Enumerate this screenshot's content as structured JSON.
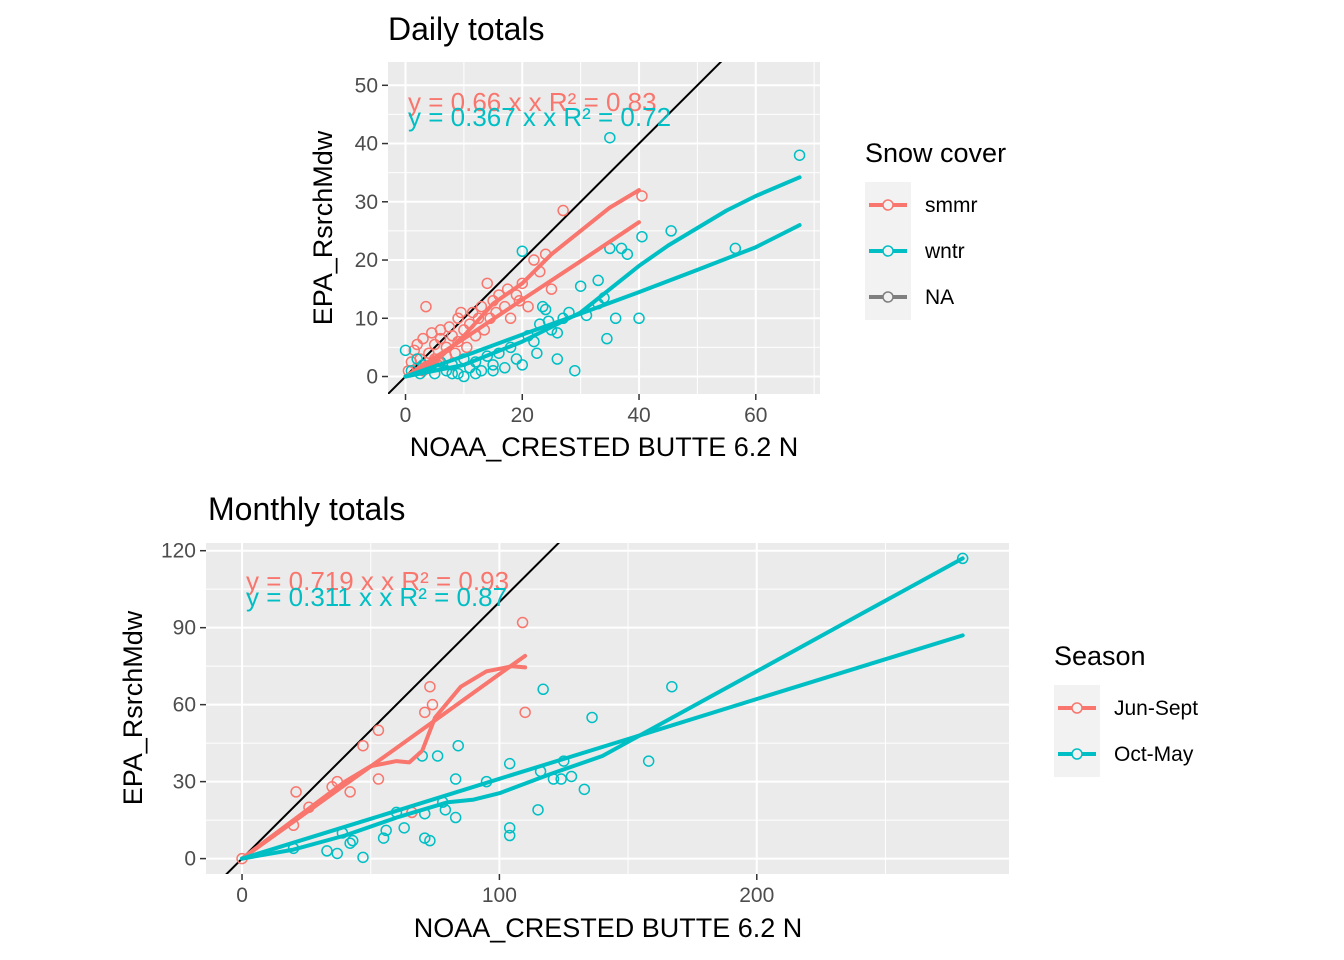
{
  "colors": {
    "red": "#F8766D",
    "teal": "#00BFC4",
    "grey": "#7F7F7F",
    "panel": "#EBEBEB",
    "grid": "#FFFFFF",
    "ref_line": "#000000"
  },
  "chart_data": [
    {
      "type": "scatter",
      "title": "Daily totals",
      "xlabel": "NOAA_CRESTED BUTTE 6.2 N",
      "ylabel": "EPA_RsrchMdw",
      "xlim": [
        -3,
        71
      ],
      "ylim": [
        -3,
        54
      ],
      "x_ticks": [
        0,
        20,
        40,
        60
      ],
      "y_ticks": [
        0,
        10,
        20,
        30,
        40,
        50
      ],
      "grid": true,
      "reference_line": "y = x",
      "legend": {
        "title": "Snow cover",
        "placement": "right",
        "entries": [
          "smmr",
          "wntr",
          "NA"
        ]
      },
      "annotations": [
        {
          "series": "smmr",
          "text": "y = 0.66 x   x   R² = 0.83"
        },
        {
          "series": "wntr",
          "text": "y = 0.367 x   x   R² = 0.72"
        }
      ],
      "series": [
        {
          "name": "smmr",
          "points": [
            [
              0.5,
              1
            ],
            [
              1,
              2.5
            ],
            [
              1.5,
              4.5
            ],
            [
              2,
              1.5
            ],
            [
              2,
              5.5
            ],
            [
              2.5,
              3
            ],
            [
              3,
              6.5
            ],
            [
              3,
              1
            ],
            [
              3.5,
              12
            ],
            [
              4,
              4
            ],
            [
              4.5,
              7.5
            ],
            [
              5,
              3
            ],
            [
              5,
              5.5
            ],
            [
              5.5,
              2
            ],
            [
              6,
              6.5
            ],
            [
              6,
              8
            ],
            [
              7,
              5
            ],
            [
              7,
              3.5
            ],
            [
              7.5,
              8.5
            ],
            [
              8,
              7
            ],
            [
              8.5,
              4
            ],
            [
              9,
              10
            ],
            [
              9,
              6
            ],
            [
              9.5,
              11
            ],
            [
              10,
              8
            ],
            [
              10.5,
              5
            ],
            [
              11,
              9
            ],
            [
              11.5,
              11
            ],
            [
              12,
              7
            ],
            [
              12.5,
              10
            ],
            [
              13,
              12
            ],
            [
              13.5,
              8
            ],
            [
              14,
              16
            ],
            [
              14.5,
              10
            ],
            [
              15,
              13
            ],
            [
              15.5,
              11
            ],
            [
              16,
              14
            ],
            [
              17,
              12
            ],
            [
              17.5,
              15
            ],
            [
              18,
              10
            ],
            [
              19,
              14
            ],
            [
              19.5,
              13
            ],
            [
              20,
              16
            ],
            [
              21,
              12
            ],
            [
              22,
              20
            ],
            [
              23,
              18
            ],
            [
              24,
              21
            ],
            [
              25,
              15
            ],
            [
              27,
              28.5
            ],
            [
              40.5,
              31
            ]
          ],
          "fit_lines": [
            [
              [
                0,
                0
              ],
              [
                10,
                6.5
              ],
              [
                20,
                13.2
              ],
              [
                30,
                19.8
              ],
              [
                40,
                26.5
              ]
            ],
            [
              [
                0,
                0
              ],
              [
                5,
                2.5
              ],
              [
                10,
                7
              ],
              [
                15,
                12.5
              ],
              [
                20,
                16
              ],
              [
                25,
                21
              ],
              [
                30,
                25
              ],
              [
                35,
                29
              ],
              [
                40,
                32
              ]
            ]
          ]
        },
        {
          "name": "wntr",
          "points": [
            [
              0,
              4.5
            ],
            [
              1,
              1
            ],
            [
              2,
              3
            ],
            [
              2.5,
              0.5
            ],
            [
              3,
              2
            ],
            [
              4,
              1.5
            ],
            [
              5,
              0.5
            ],
            [
              6,
              2.5
            ],
            [
              7,
              1
            ],
            [
              8,
              2
            ],
            [
              9,
              0.5
            ],
            [
              10,
              3
            ],
            [
              11,
              1.5
            ],
            [
              12,
              2.5
            ],
            [
              13,
              1
            ],
            [
              14,
              3.5
            ],
            [
              15,
              2
            ],
            [
              16,
              4
            ],
            [
              17,
              1.5
            ],
            [
              18,
              5
            ],
            [
              19,
              3
            ],
            [
              20,
              2
            ],
            [
              20,
              21.5
            ],
            [
              21,
              7
            ],
            [
              22,
              6
            ],
            [
              22.5,
              4
            ],
            [
              23,
              9
            ],
            [
              23.5,
              12
            ],
            [
              24,
              11.5
            ],
            [
              24.5,
              9.5
            ],
            [
              25,
              8
            ],
            [
              26,
              7.5
            ],
            [
              27,
              10
            ],
            [
              28,
              11
            ],
            [
              29,
              1
            ],
            [
              30,
              15.5
            ],
            [
              31,
              10.5
            ],
            [
              33,
              12.5
            ],
            [
              33,
              16.5
            ],
            [
              34,
              13.5
            ],
            [
              34.5,
              6.5
            ],
            [
              35,
              22
            ],
            [
              35,
              41
            ],
            [
              36,
              10
            ],
            [
              37,
              22
            ],
            [
              38,
              21
            ],
            [
              40,
              10
            ],
            [
              40.5,
              24
            ],
            [
              45.5,
              25
            ],
            [
              56.5,
              22
            ],
            [
              67.5,
              38
            ],
            [
              26,
              3
            ],
            [
              15,
              1
            ],
            [
              12,
              0.5
            ],
            [
              10,
              0
            ],
            [
              8,
              0.5
            ]
          ],
          "fit_lines": [
            [
              [
                0,
                0
              ],
              [
                10,
                3.5
              ],
              [
                20,
                7.2
              ],
              [
                30,
                10.8
              ],
              [
                40,
                14.5
              ],
              [
                50,
                18.3
              ],
              [
                60,
                22.2
              ],
              [
                67.5,
                26
              ]
            ],
            [
              [
                0,
                0
              ],
              [
                10,
                2
              ],
              [
                20,
                6
              ],
              [
                25,
                8.5
              ],
              [
                30,
                11
              ],
              [
                35,
                15
              ],
              [
                40,
                19
              ],
              [
                45,
                22.5
              ],
              [
                50,
                25.5
              ],
              [
                55,
                28.5
              ],
              [
                60,
                31
              ],
              [
                67.5,
                34.2
              ]
            ]
          ]
        }
      ]
    },
    {
      "type": "scatter",
      "title": "Monthly totals",
      "xlabel": "NOAA_CRESTED BUTTE 6.2 N",
      "ylabel": "EPA_RsrchMdw",
      "xlim": [
        -14,
        298
      ],
      "ylim": [
        -6,
        123
      ],
      "x_ticks": [
        0,
        100,
        200
      ],
      "y_ticks": [
        0,
        30,
        60,
        90,
        120
      ],
      "grid": true,
      "reference_line": "y = x",
      "legend": {
        "title": "Season",
        "placement": "right",
        "entries": [
          "Jun-Sept",
          "Oct-May"
        ]
      },
      "annotations": [
        {
          "series": "Jun-Sept",
          "text": "y = 0.719 x   x   R² = 0.93"
        },
        {
          "series": "Oct-May",
          "text": "y = 0.311 x   x   R² = 0.87"
        }
      ],
      "series": [
        {
          "name": "Jun-Sept",
          "points": [
            [
              0,
              0
            ],
            [
              20,
              13
            ],
            [
              21,
              26
            ],
            [
              26,
              20
            ],
            [
              35,
              28
            ],
            [
              37,
              30
            ],
            [
              42,
              26
            ],
            [
              47,
              44
            ],
            [
              53,
              50
            ],
            [
              53,
              31
            ],
            [
              66,
              18
            ],
            [
              71,
              57
            ],
            [
              73,
              67
            ],
            [
              74,
              60
            ],
            [
              109,
              92
            ],
            [
              110,
              57
            ]
          ],
          "fit_lines": [
            [
              [
                0,
                0
              ],
              [
                20,
                14.4
              ],
              [
                40,
                28.8
              ],
              [
                60,
                43.1
              ],
              [
                80,
                57.5
              ],
              [
                100,
                71.9
              ],
              [
                110,
                79
              ]
            ],
            [
              [
                0,
                0
              ],
              [
                20,
                15
              ],
              [
                40,
                30
              ],
              [
                50,
                36
              ],
              [
                60,
                38
              ],
              [
                65,
                37.5
              ],
              [
                70,
                42
              ],
              [
                75,
                55
              ],
              [
                85,
                67
              ],
              [
                95,
                73
              ],
              [
                105,
                75
              ],
              [
                110,
                74.5
              ]
            ]
          ]
        },
        {
          "name": "Oct-May",
          "points": [
            [
              20,
              4
            ],
            [
              33,
              3
            ],
            [
              37,
              2
            ],
            [
              39,
              10
            ],
            [
              42,
              6
            ],
            [
              43,
              7
            ],
            [
              47,
              0.5
            ],
            [
              55,
              8
            ],
            [
              56,
              11
            ],
            [
              60,
              18
            ],
            [
              63,
              12
            ],
            [
              70,
              40
            ],
            [
              71,
              17.5
            ],
            [
              71,
              8
            ],
            [
              73,
              7
            ],
            [
              76,
              40
            ],
            [
              78,
              22
            ],
            [
              79,
              19
            ],
            [
              83,
              16
            ],
            [
              83,
              31
            ],
            [
              84,
              44
            ],
            [
              95,
              30
            ],
            [
              104,
              37
            ],
            [
              104,
              12
            ],
            [
              104,
              9
            ],
            [
              115,
              19
            ],
            [
              116,
              34
            ],
            [
              117,
              66
            ],
            [
              121,
              31
            ],
            [
              124,
              31
            ],
            [
              125,
              38
            ],
            [
              128,
              32
            ],
            [
              133,
              27
            ],
            [
              136,
              55
            ],
            [
              158,
              38
            ],
            [
              167,
              67
            ],
            [
              280,
              117
            ]
          ],
          "fit_lines": [
            [
              [
                0,
                0
              ],
              [
                50,
                15.5
              ],
              [
                100,
                31.1
              ],
              [
                150,
                46.6
              ],
              [
                200,
                62.2
              ],
              [
                250,
                77.7
              ],
              [
                280,
                87
              ]
            ],
            [
              [
                0,
                0
              ],
              [
                20,
                3.5
              ],
              [
                40,
                9
              ],
              [
                60,
                16
              ],
              [
                80,
                22
              ],
              [
                90,
                23
              ],
              [
                100,
                25.5
              ],
              [
                120,
                33
              ],
              [
                140,
                40
              ],
              [
                160,
                51
              ],
              [
                200,
                73
              ],
              [
                240,
                95
              ],
              [
                280,
                117
              ]
            ]
          ]
        }
      ]
    }
  ]
}
